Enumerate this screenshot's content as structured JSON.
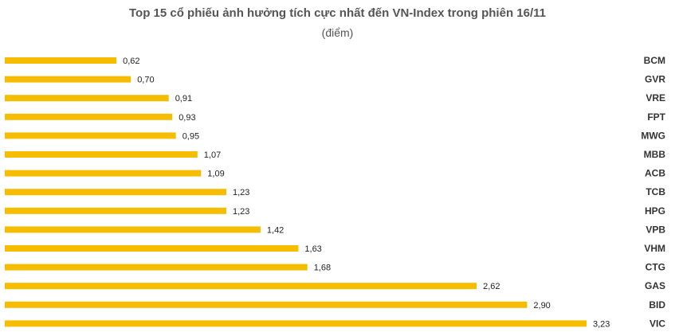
{
  "chart_data": {
    "type": "bar",
    "orientation": "horizontal",
    "title": "Top 15 cổ phiếu ảnh hưởng tích cực nhất đến VN-Index trong phiên 16/11",
    "subtitle": "(điểm)",
    "categories": [
      "BCM",
      "GVR",
      "VRE",
      "FPT",
      "MWG",
      "MBB",
      "ACB",
      "TCB",
      "HPG",
      "VPB",
      "VHM",
      "CTG",
      "GAS",
      "BID",
      "VIC"
    ],
    "values": [
      0.62,
      0.7,
      0.91,
      0.93,
      0.95,
      1.07,
      1.09,
      1.23,
      1.23,
      1.42,
      1.63,
      1.68,
      2.62,
      2.9,
      3.23
    ],
    "value_labels": [
      "0,62",
      "0,70",
      "0,91",
      "0,93",
      "0,95",
      "1,07",
      "1,09",
      "1,23",
      "1,23",
      "1,42",
      "1,63",
      "1,68",
      "2,62",
      "2,90",
      "3,23"
    ],
    "xlim": [
      0,
      3.23
    ],
    "category_labels_position": "right",
    "legend": "none",
    "grid": false,
    "bar_color": "#F5BC00"
  }
}
